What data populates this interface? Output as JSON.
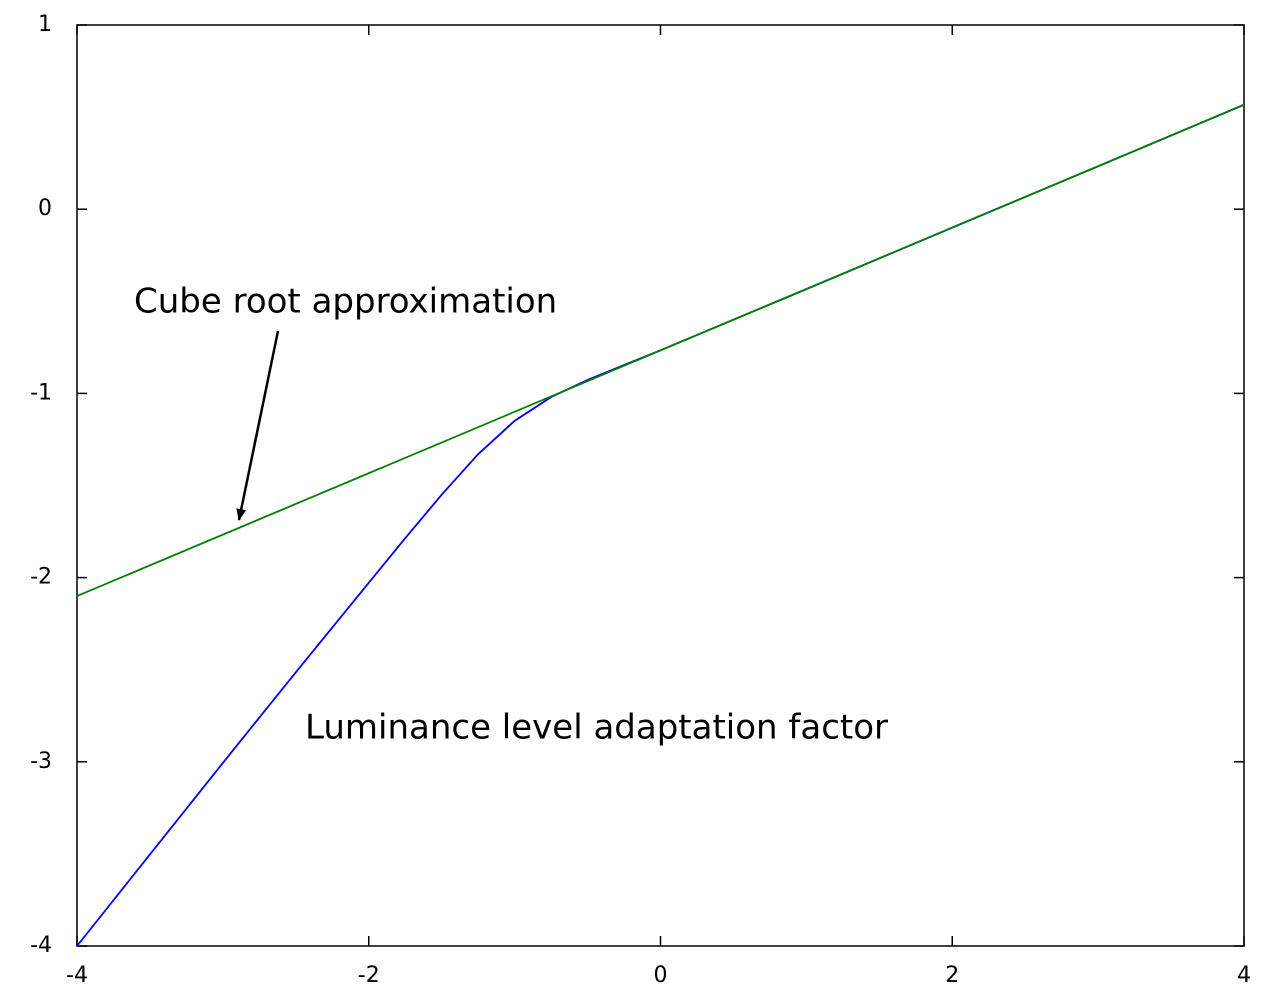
{
  "chart_data": {
    "type": "line",
    "annotations": [
      "Cube root approximation",
      "Luminance level adaptation factor"
    ],
    "series": [
      {
        "name": "Luminance level adaptation factor",
        "color": "#0000ff",
        "x": [
          -4,
          -3,
          -2.5,
          -2,
          -1.75,
          -1.5,
          -1.25,
          -1,
          -0.75,
          -0.5,
          -0.25,
          0,
          0.5,
          1,
          2,
          3,
          4
        ],
        "values": [
          -4,
          -3.006,
          -2.514,
          -2.028,
          -1.786,
          -1.55,
          -1.33,
          -1.149,
          -1.02,
          -0.927,
          -0.846,
          -0.766,
          -0.6,
          -0.434,
          -0.1,
          0.233,
          0.567
        ]
      },
      {
        "name": "Cube root approximation",
        "color": "#008000",
        "x": [
          -4,
          4
        ],
        "values": [
          -2.1,
          0.567
        ]
      }
    ],
    "xlim": [
      -4,
      4
    ],
    "xticks": [
      -4,
      -2,
      0,
      2,
      4
    ],
    "ylim": [
      -4,
      1
    ],
    "yticks": [
      1,
      0,
      -1,
      -2,
      -3,
      -4
    ]
  }
}
